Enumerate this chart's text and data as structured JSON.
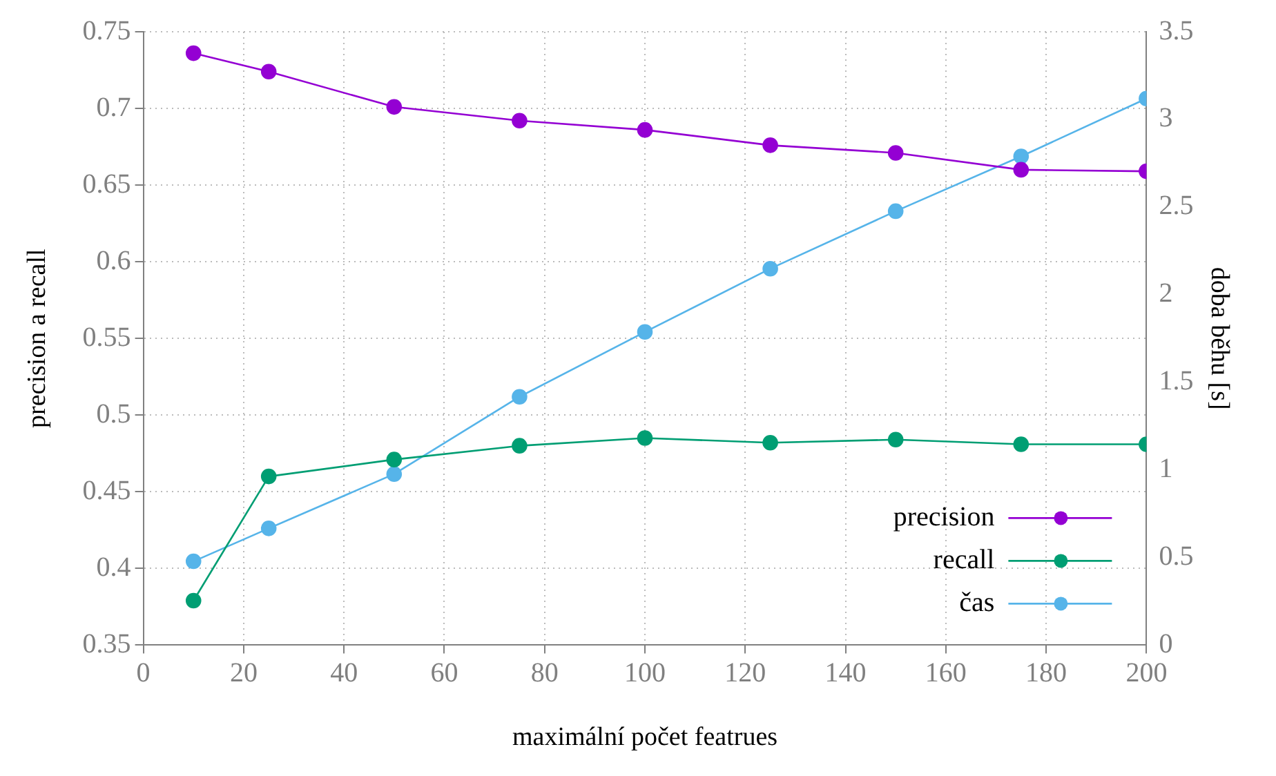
{
  "chart_data": {
    "type": "line",
    "xlabel": "maximální počet featrues",
    "ylabel": "precision a recall",
    "y2label": "doba běhu [s]",
    "x": [
      10,
      25,
      50,
      75,
      100,
      125,
      150,
      175,
      200
    ],
    "series": [
      {
        "name": "precision",
        "color": "#9400d3",
        "values": [
          0.736,
          0.724,
          0.701,
          0.692,
          0.686,
          0.676,
          0.671,
          0.66,
          0.659
        ]
      },
      {
        "name": "recall",
        "color": "#009e73",
        "values": [
          0.379,
          0.46,
          0.471,
          0.48,
          0.485,
          0.482,
          0.484,
          0.481,
          0.481
        ]
      },
      {
        "name": "čas",
        "color": "#56b4e9",
        "axis": "y2",
        "values": [
          0.478,
          0.666,
          0.976,
          1.417,
          1.787,
          2.148,
          2.476,
          2.789,
          3.119
        ]
      }
    ],
    "xlim": [
      0,
      200
    ],
    "xticks": [
      0,
      20,
      40,
      60,
      80,
      100,
      120,
      140,
      160,
      180,
      200
    ],
    "ylim": [
      0.35,
      0.75
    ],
    "yticks": [
      0.35,
      0.4,
      0.45,
      0.5,
      0.55,
      0.6,
      0.65,
      0.7,
      0.75
    ],
    "y2lim": [
      0,
      3.5
    ],
    "y2ticks": [
      0,
      0.5,
      1,
      1.5,
      2,
      2.5,
      3,
      3.5
    ],
    "grid": true,
    "legend": "bottom right",
    "marker": "circle",
    "line_style": "solid"
  }
}
